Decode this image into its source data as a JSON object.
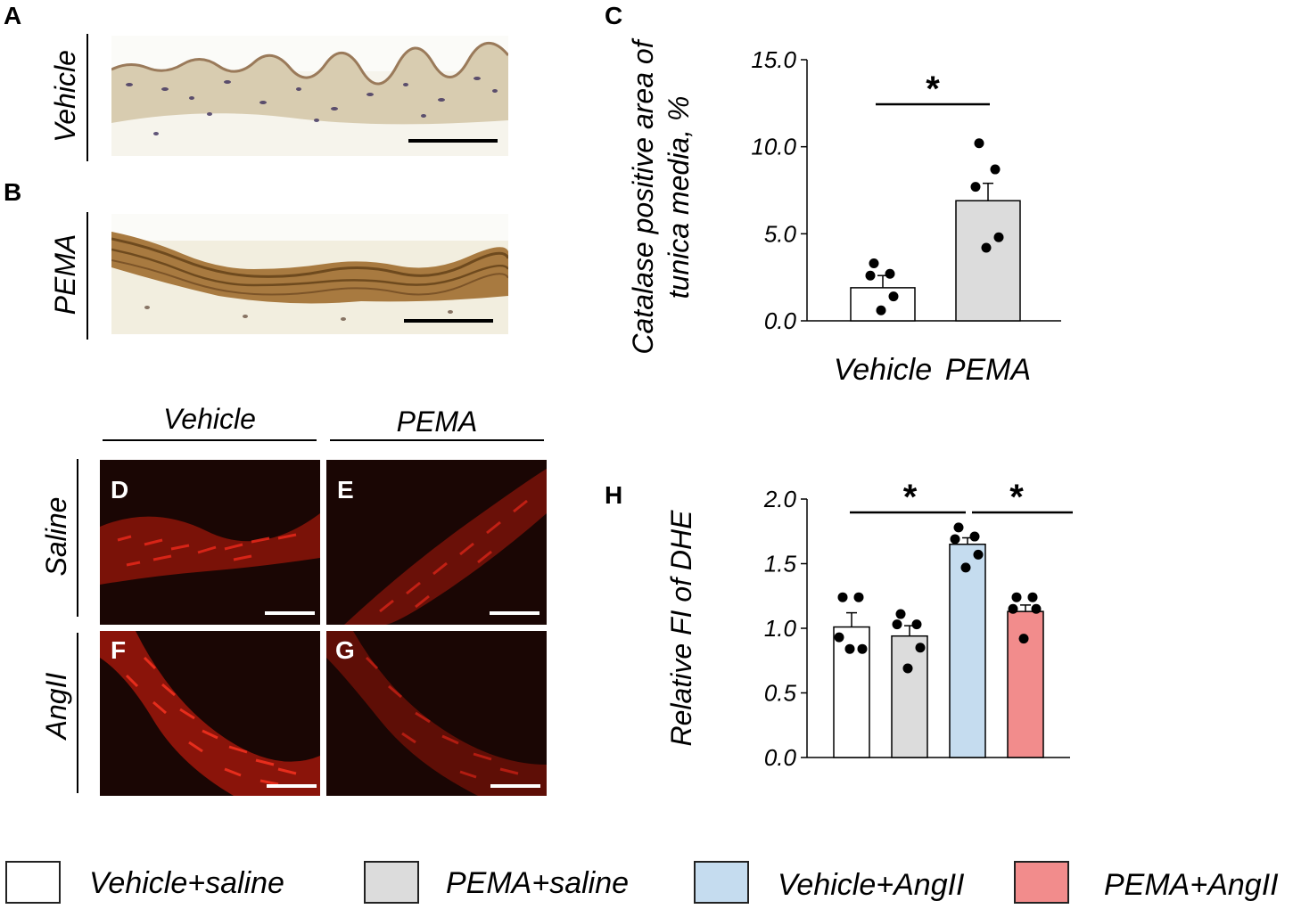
{
  "panels": {
    "A": "A",
    "B": "B",
    "C": "C",
    "D": "D",
    "E": "E",
    "F": "F",
    "G": "G",
    "H": "H"
  },
  "row_labels": {
    "vehicle": "Vehicle",
    "pema": "PEMA",
    "saline": "Saline",
    "angii": "AngII"
  },
  "column_labels": {
    "vehicle": "Vehicle",
    "pema": "PEMA"
  },
  "colors": {
    "vehicle_saline": "#ffffff",
    "pema_saline": "#dcdcdc",
    "vehicle_angii": "#c5dcef",
    "pema_angii": "#f28c8c",
    "dhe_red": "#c81a10",
    "brown_stain": "#9a6a32"
  },
  "legend": [
    {
      "label": "Vehicle+saline",
      "color": "#ffffff"
    },
    {
      "label": "PEMA+saline",
      "color": "#dcdcdc"
    },
    {
      "label": "Vehicle+AngII",
      "color": "#c5dcef"
    },
    {
      "label": "PEMA+AngII",
      "color": "#f28c8c"
    }
  ],
  "chart_data": [
    {
      "panel": "C",
      "type": "bar",
      "ylabel_lines": [
        "Catalase positive area of",
        "tunica media, %"
      ],
      "ylim": [
        0,
        15
      ],
      "yticks": [
        "0.0",
        "5.0",
        "10.0",
        "15.0"
      ],
      "categories": [
        "Vehicle",
        "PEMA"
      ],
      "values": [
        1.9,
        6.9
      ],
      "errors": [
        0.7,
        1.0
      ],
      "bar_colors": [
        "#ffffff",
        "#dcdcdc"
      ],
      "points": [
        [
          3.3,
          2.7,
          2.6,
          1.4,
          0.6
        ],
        [
          10.2,
          8.7,
          7.7,
          4.8,
          4.2
        ]
      ],
      "significance": [
        {
          "from": 0,
          "to": 1,
          "label": "*"
        }
      ]
    },
    {
      "panel": "H",
      "type": "bar",
      "ylabel": "Relative FI of DHE",
      "ylim": [
        0,
        2
      ],
      "yticks": [
        "0.0",
        "0.5",
        "1.0",
        "1.5",
        "2.0"
      ],
      "categories": [
        "Vehicle+saline",
        "PEMA+saline",
        "Vehicle+AngII",
        "PEMA+AngII"
      ],
      "values": [
        1.01,
        0.94,
        1.65,
        1.13
      ],
      "errors": [
        0.11,
        0.08,
        0.05,
        0.05
      ],
      "bar_colors": [
        "#ffffff",
        "#dcdcdc",
        "#c5dcef",
        "#f28c8c"
      ],
      "points": [
        [
          1.24,
          1.24,
          0.93,
          0.84,
          0.84
        ],
        [
          1.11,
          1.03,
          1.03,
          0.85,
          0.69
        ],
        [
          1.78,
          1.71,
          1.69,
          1.57,
          1.47
        ],
        [
          1.24,
          1.24,
          1.15,
          1.15,
          0.92
        ]
      ],
      "significance": [
        {
          "from": 0,
          "to": 2,
          "label": "*"
        },
        {
          "from": 2,
          "to": 3,
          "label": "*"
        }
      ]
    }
  ]
}
